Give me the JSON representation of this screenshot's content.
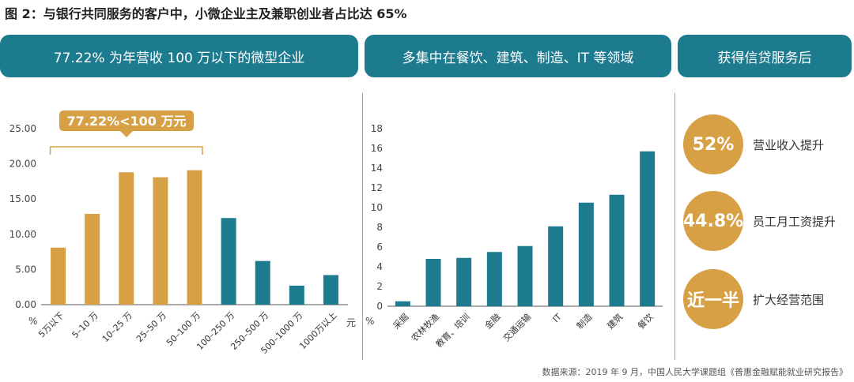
{
  "header": {
    "title": "图 2：与银行共同服务的客户中，小微企业主及兼职创业者占比达 65%"
  },
  "banners": [
    "77.22% 为年营收 100 万以下的微型企业",
    "多集中在餐饮、建筑、制造、IT 等领域",
    "获得信贷服务后"
  ],
  "stats": [
    {
      "value": "52%",
      "label": "营业收入提升"
    },
    {
      "value": "44.8%",
      "label": "员工月工资提升"
    },
    {
      "value": "近一半",
      "label": "扩大经营范围"
    }
  ],
  "source": "数据来源：2019 年 9 月，中国人民大学课题组《普惠金融赋能就业研究报告》",
  "colors": {
    "teal": "#1d7b8f",
    "gold": "#d8a045",
    "axis": "#555555"
  },
  "chart_data": [
    {
      "type": "bar",
      "categories": [
        "5万以下",
        "5–10 万",
        "10–25 万",
        "25–50 万",
        "50–100 万",
        "100–250 万",
        "250–500 万",
        "500–1000 万",
        "1000万以上"
      ],
      "values": [
        8.1,
        12.9,
        18.8,
        18.1,
        19.1,
        12.3,
        6.2,
        2.7,
        4.2
      ],
      "highlight_count": 5,
      "yticks": [
        "0.00",
        "5.00",
        "10.00",
        "15.00",
        "20.00",
        "25.00"
      ],
      "ylim": [
        0,
        25
      ],
      "ylabel": "%",
      "xlabel": "元",
      "annotation": "77.22%<100 万元",
      "grid": false
    },
    {
      "type": "bar",
      "categories": [
        "采掘",
        "农林牧渔",
        "教育、培训",
        "金融",
        "交通运输",
        "IT",
        "制造",
        "建筑",
        "餐饮"
      ],
      "values": [
        0.5,
        4.8,
        4.9,
        5.5,
        6.1,
        8.1,
        10.5,
        11.3,
        15.7
      ],
      "yticks": [
        "0",
        "2",
        "4",
        "6",
        "8",
        "10",
        "12",
        "14",
        "16",
        "18"
      ],
      "ylim": [
        0,
        18
      ],
      "ylabel": "%",
      "grid": false
    }
  ]
}
